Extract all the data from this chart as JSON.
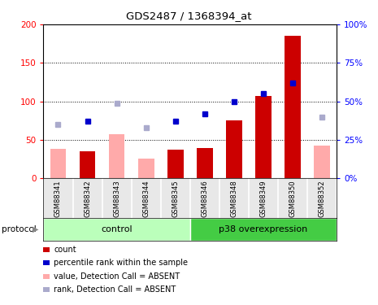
{
  "title": "GDS2487 / 1368394_at",
  "samples": [
    "GSM88341",
    "GSM88342",
    "GSM88343",
    "GSM88344",
    "GSM88345",
    "GSM88346",
    "GSM88348",
    "GSM88349",
    "GSM88350",
    "GSM88352"
  ],
  "absent": [
    true,
    false,
    true,
    true,
    false,
    false,
    false,
    false,
    false,
    true
  ],
  "count_values": [
    38,
    35,
    57,
    26,
    37,
    40,
    75,
    107,
    185,
    43
  ],
  "rank_values": [
    35,
    37,
    49,
    33,
    37,
    42,
    50,
    55,
    62,
    40
  ],
  "ylim_left": [
    0,
    200
  ],
  "ylim_right": [
    0,
    100
  ],
  "yticks_left": [
    0,
    50,
    100,
    150,
    200
  ],
  "yticks_right": [
    0,
    25,
    50,
    75,
    100
  ],
  "yticklabels_left": [
    "0",
    "50",
    "100",
    "150",
    "200"
  ],
  "yticklabels_right": [
    "0%",
    "25%",
    "50%",
    "75%",
    "100%"
  ],
  "color_count_present": "#cc0000",
  "color_count_absent": "#ffaaaa",
  "color_rank_present": "#0000cc",
  "color_rank_absent": "#aaaacc",
  "groups": [
    {
      "label": "control",
      "start": 0,
      "end": 5,
      "color": "#bbffbb"
    },
    {
      "label": "p38 overexpression",
      "start": 5,
      "end": 10,
      "color": "#44cc44"
    }
  ],
  "protocol_label": "protocol",
  "legend_items": [
    {
      "label": "count",
      "color": "#cc0000"
    },
    {
      "label": "percentile rank within the sample",
      "color": "#0000cc"
    },
    {
      "label": "value, Detection Call = ABSENT",
      "color": "#ffaaaa"
    },
    {
      "label": "rank, Detection Call = ABSENT",
      "color": "#aaaacc"
    }
  ],
  "bg_color": "#e8e8e8",
  "fig_bg": "#ffffff"
}
